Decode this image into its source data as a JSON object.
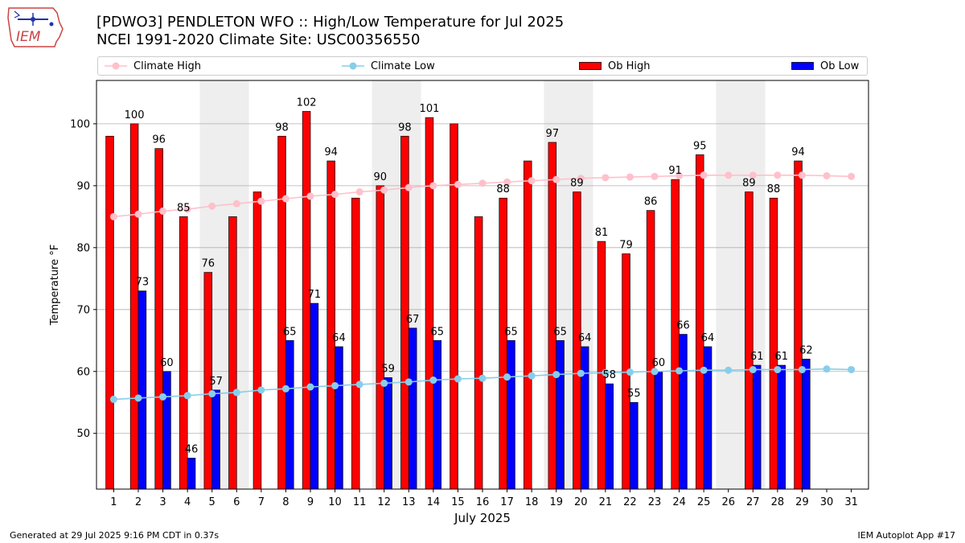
{
  "header": {
    "logo_text": "IEM",
    "title_line1": "[PDWO3] PENDLETON WFO :: High/Low Temperature for Jul 2025",
    "title_line2": "NCEI 1991-2020 Climate Site: USC00356550"
  },
  "footer": {
    "left": "Generated at 29 Jul 2025 9:16 PM CDT in 0.37s",
    "right": "IEM Autoplot App #17"
  },
  "colors": {
    "ob_high": "#ff0000",
    "ob_low": "#0000ff",
    "climate_high": "#ffc0cb",
    "climate_low": "#87ceeb",
    "weekend_shade": "#eeeeee",
    "grid": "#b0b0b0"
  },
  "chart_data": {
    "type": "bar",
    "title": "[PDWO3] PENDLETON WFO :: High/Low Temperature for Jul 2025",
    "subtitle": "NCEI 1991-2020 Climate Site: USC00356550",
    "xlabel": "July 2025",
    "ylabel": "Temperature °F",
    "ylim": [
      41,
      107
    ],
    "yticks": [
      50,
      60,
      70,
      80,
      90,
      100
    ],
    "grid": true,
    "legend_position": "top",
    "categories": [
      "1",
      "2",
      "3",
      "4",
      "5",
      "6",
      "7",
      "8",
      "9",
      "10",
      "11",
      "12",
      "13",
      "14",
      "15",
      "16",
      "17",
      "18",
      "19",
      "20",
      "21",
      "22",
      "23",
      "24",
      "25",
      "26",
      "27",
      "28",
      "29",
      "30",
      "31"
    ],
    "shaded_days": [
      [
        5,
        6
      ],
      [
        12,
        13
      ],
      [
        19,
        20
      ],
      [
        26,
        27
      ]
    ],
    "series": [
      {
        "name": "Ob High",
        "kind": "bar",
        "values": [
          98,
          100,
          96,
          85,
          76,
          85,
          89,
          98,
          102,
          94,
          88,
          90,
          98,
          101,
          100,
          85,
          88,
          94,
          97,
          89,
          81,
          79,
          86,
          91,
          95,
          null,
          89,
          88,
          94,
          null,
          null
        ],
        "labeled": [
          false,
          true,
          true,
          true,
          true,
          false,
          false,
          true,
          true,
          true,
          false,
          true,
          true,
          true,
          false,
          false,
          true,
          false,
          true,
          true,
          true,
          true,
          true,
          true,
          true,
          false,
          true,
          true,
          true,
          false,
          false
        ]
      },
      {
        "name": "Ob Low",
        "kind": "bar",
        "values": [
          null,
          73,
          60,
          46,
          57,
          null,
          null,
          65,
          71,
          64,
          null,
          59,
          67,
          65,
          null,
          null,
          65,
          null,
          65,
          64,
          58,
          55,
          60,
          66,
          64,
          null,
          61,
          61,
          62,
          null,
          null
        ],
        "labeled": [
          false,
          true,
          true,
          true,
          true,
          false,
          false,
          true,
          true,
          true,
          false,
          true,
          true,
          true,
          false,
          false,
          true,
          false,
          true,
          true,
          true,
          true,
          true,
          true,
          true,
          false,
          true,
          true,
          true,
          false,
          false
        ]
      },
      {
        "name": "Climate High",
        "kind": "line",
        "values": [
          85.0,
          85.4,
          85.9,
          86.2,
          86.7,
          87.1,
          87.5,
          87.9,
          88.3,
          88.6,
          89.0,
          89.3,
          89.7,
          90.0,
          90.2,
          90.4,
          90.6,
          90.8,
          91.0,
          91.2,
          91.3,
          91.4,
          91.5,
          91.6,
          91.7,
          91.7,
          91.7,
          91.7,
          91.7,
          91.6,
          91.5
        ]
      },
      {
        "name": "Climate Low",
        "kind": "line",
        "values": [
          55.5,
          55.7,
          55.9,
          56.1,
          56.4,
          56.6,
          57.0,
          57.2,
          57.5,
          57.7,
          57.9,
          58.1,
          58.3,
          58.6,
          58.8,
          58.9,
          59.1,
          59.3,
          59.5,
          59.7,
          59.8,
          59.9,
          60.0,
          60.1,
          60.2,
          60.2,
          60.3,
          60.3,
          60.3,
          60.4,
          60.3
        ]
      }
    ]
  }
}
